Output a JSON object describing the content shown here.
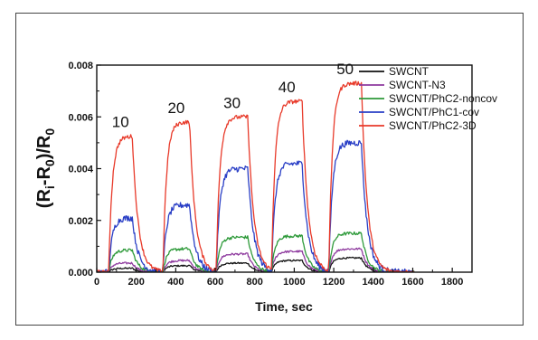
{
  "chart_data": {
    "type": "line",
    "title": "",
    "xlabel": "Time, sec",
    "ylabel": "(R_i-R_0)/R_0",
    "xlim": [
      0,
      1900
    ],
    "ylim": [
      0,
      0.008
    ],
    "x_ticks": [
      0,
      200,
      400,
      600,
      800,
      1000,
      1200,
      1400,
      1600,
      1800
    ],
    "y_ticks": [
      "0.000",
      "0.002",
      "0.004",
      "0.006",
      "0.008"
    ],
    "grid": false,
    "legend_position": "top-right",
    "pulses": [
      {
        "start": 60,
        "end": 180,
        "label": "10"
      },
      {
        "start": 335,
        "end": 470,
        "label": "20"
      },
      {
        "start": 605,
        "end": 765,
        "label": "30"
      },
      {
        "start": 885,
        "end": 1040,
        "label": "40"
      },
      {
        "start": 1175,
        "end": 1340,
        "label": "50"
      }
    ],
    "series": [
      {
        "name": "SWCNT",
        "color": "#111111",
        "peaks": [
          0.00015,
          0.00025,
          0.00035,
          0.00045,
          0.00055
        ],
        "noise": 3e-05
      },
      {
        "name": "SWCNT-N3",
        "color": "#8e3a9e",
        "peaks": [
          0.00035,
          0.00045,
          0.0007,
          0.0008,
          0.0009
        ],
        "noise": 4e-05
      },
      {
        "name": "SWCNT/PhC2-noncov",
        "color": "#2e9a3a",
        "peaks": [
          0.00085,
          0.0009,
          0.00135,
          0.0014,
          0.0015
        ],
        "noise": 6e-05
      },
      {
        "name": "SWCNT/PhC1-cov",
        "color": "#2a3fc6",
        "peaks": [
          0.0021,
          0.0026,
          0.004,
          0.0042,
          0.005
        ],
        "noise": 0.00012
      },
      {
        "name": "SWCNT/PhC2-3D",
        "color": "#e83a2a",
        "peaks": [
          0.00525,
          0.0058,
          0.006,
          0.0066,
          0.0073
        ],
        "noise": 8e-05
      }
    ]
  }
}
